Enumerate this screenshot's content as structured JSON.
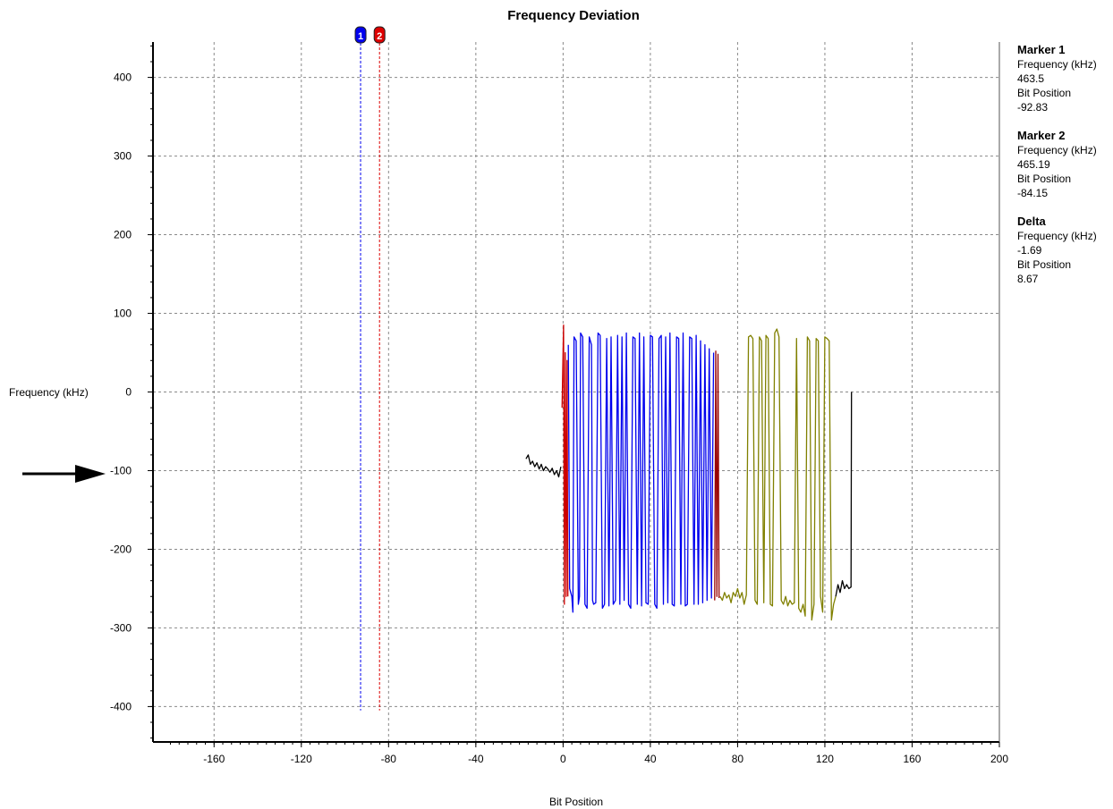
{
  "chart_data": {
    "type": "line",
    "title": "Frequency Deviation",
    "xlabel": "Bit Position",
    "ylabel": "Frequency (kHz)",
    "xlim": [
      -188,
      200
    ],
    "ylim": [
      -445,
      445
    ],
    "x_ticks": [
      -160,
      -120,
      -80,
      -40,
      0,
      40,
      80,
      120,
      160,
      200
    ],
    "y_ticks": [
      400,
      300,
      200,
      100,
      0,
      -100,
      -200,
      -300,
      -400
    ],
    "grid": true,
    "series": [
      {
        "color": "#000000",
        "x": [
          -17,
          -16,
          -15,
          -14,
          -13,
          -12,
          -11,
          -10,
          -9,
          -8,
          -7,
          -6,
          -5,
          -4,
          -3,
          -2,
          -1
        ],
        "y": [
          -85,
          -80,
          -92,
          -88,
          -95,
          -90,
          -98,
          -92,
          -100,
          -95,
          -98,
          -102,
          -97,
          -105,
          -100,
          -108,
          -95
        ]
      },
      {
        "color": "#cc0000",
        "x": [
          -0.5,
          0.2,
          0.6,
          1.0,
          1.4,
          1.8,
          2.2
        ],
        "y": [
          -20,
          85,
          -270,
          50,
          -260,
          40,
          -260
        ]
      },
      {
        "color": "#0000ee",
        "x": [
          2.4,
          3,
          4,
          4.5,
          5,
          6,
          7,
          7.5,
          8,
          9,
          10,
          11,
          12,
          13,
          13.5,
          14,
          15,
          16,
          17,
          18,
          19,
          20,
          21,
          22,
          23,
          24,
          25,
          26,
          27,
          28,
          29,
          30,
          31,
          32,
          33,
          34,
          35,
          36,
          37,
          38,
          39,
          40,
          41,
          42,
          43,
          44,
          45,
          46,
          47,
          48,
          49,
          50,
          51,
          52,
          53,
          54,
          55,
          56,
          57,
          58,
          59,
          60,
          61,
          62,
          63,
          64,
          65,
          66,
          67,
          68,
          69
        ],
        "y": [
          60,
          -250,
          -260,
          -280,
          70,
          65,
          -270,
          -260,
          75,
          70,
          -270,
          -275,
          70,
          60,
          -265,
          -270,
          -268,
          75,
          72,
          -275,
          -270,
          68,
          -272,
          70,
          -270,
          -265,
          72,
          -270,
          70,
          -265,
          75,
          -270,
          -275,
          70,
          68,
          -270,
          75,
          -272,
          70,
          -268,
          -270,
          72,
          70,
          -270,
          -275,
          68,
          72,
          -270,
          70,
          -268,
          75,
          -270,
          -272,
          70,
          68,
          -270,
          75,
          -272,
          -270,
          70,
          68,
          -270,
          72,
          -270,
          65,
          -268,
          60,
          -265,
          55,
          -262,
          50
        ]
      },
      {
        "color": "#990000",
        "x": [
          69.5,
          70,
          70.5,
          71,
          71.5
        ],
        "y": [
          -265,
          52,
          -260,
          48,
          -262
        ]
      },
      {
        "color": "#808000",
        "x": [
          72,
          73,
          74,
          75,
          76,
          77,
          78,
          79,
          80,
          81,
          82,
          83,
          84,
          85,
          86,
          87,
          88,
          89,
          90,
          91,
          92,
          93,
          94,
          95,
          96,
          97,
          98,
          99,
          100,
          101,
          102,
          103,
          104,
          105,
          106,
          107,
          108,
          109,
          110,
          111,
          112,
          113,
          114,
          115,
          116,
          117,
          118,
          119,
          120,
          121,
          122,
          123,
          124,
          125
        ],
        "y": [
          -260,
          -265,
          -255,
          -262,
          -258,
          -268,
          -255,
          -260,
          -250,
          -262,
          -255,
          -270,
          -258,
          70,
          72,
          68,
          -265,
          -270,
          70,
          65,
          -268,
          72,
          68,
          -270,
          -272,
          75,
          80,
          70,
          -265,
          -270,
          -260,
          -272,
          -265,
          -270,
          -268,
          68,
          -275,
          -280,
          -270,
          -285,
          70,
          65,
          -290,
          -270,
          68,
          65,
          -260,
          -280,
          70,
          68,
          65,
          -290,
          -270,
          -260
        ]
      },
      {
        "color": "#000000",
        "x": [
          125,
          126,
          127,
          128,
          129,
          130,
          131,
          132,
          132.2
        ],
        "y": [
          -260,
          -245,
          -255,
          -240,
          -250,
          -245,
          -250,
          -248,
          0
        ]
      }
    ],
    "markers": [
      {
        "label": "1",
        "x": -92.83,
        "color": "#0000ee"
      },
      {
        "label": "2",
        "x": -84.15,
        "color": "#dd0000"
      }
    ]
  },
  "readout": {
    "m1_title": "Marker 1",
    "m1_freq_label": "Frequency (kHz)",
    "m1_freq": "463.5",
    "m1_bit_label": "Bit Position",
    "m1_bit": "-92.83",
    "m2_title": "Marker 2",
    "m2_freq_label": "Frequency (kHz)",
    "m2_freq": "465.19",
    "m2_bit_label": "Bit Position",
    "m2_bit": "-84.15",
    "d_title": "Delta",
    "d_freq_label": "Frequency (kHz)",
    "d_freq": "-1.69",
    "d_bit_label": "Bit Position",
    "d_bit": "8.67"
  },
  "arrow_icon": "right-arrow-icon"
}
